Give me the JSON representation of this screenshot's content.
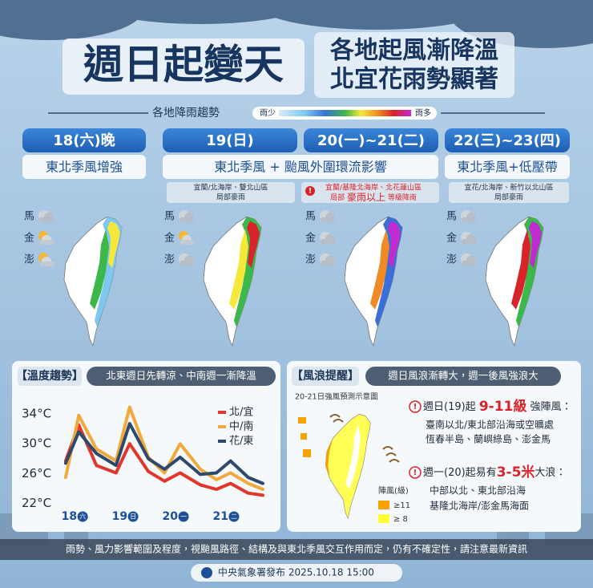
{
  "header": {
    "title": "週日起變天",
    "subtitle_lines": [
      "各地起風漸降溫",
      "北宜花雨勢顯著"
    ]
  },
  "rain_legend": {
    "title": "各地降雨趨勢",
    "low": "雨少",
    "high": "雨多"
  },
  "periods": [
    "18(六)晚",
    "19(日)",
    "20(一)~21(二)",
    "22(三)~23(四)"
  ],
  "descriptions": [
    "東北季風增強",
    "東北季風 + 颱風外圍環流影響",
    "東北季風+低壓帶"
  ],
  "notes": {
    "n19": [
      "宜蘭/北海岸、雙北山區",
      "局部豪雨"
    ],
    "n20": {
      "line1": "宜蘭/基隆北海岸、北花蓮山區",
      "lead": "局部",
      "highlight": "豪雨以上",
      "tail": "等級降雨"
    },
    "n22": [
      "宜花/北海岸、新竹以北山區",
      "局部豪雨"
    ]
  },
  "islands": [
    "馬",
    "金",
    "澎"
  ],
  "temperature": {
    "title": "溫度趨勢",
    "subtitle": "北東週日先轉涼、中南週一漸降溫"
  },
  "chart_data": {
    "type": "line",
    "x": [
      17.71,
      17.97,
      18.32,
      18.71,
      18.98,
      19.35,
      19.67,
      19.98,
      20.38,
      20.7,
      20.98,
      21.33,
      21.62
    ],
    "xlim": [
      17.6,
      21.7
    ],
    "xticks": [
      {
        "value": 18,
        "label": "18"
      },
      {
        "value": 19,
        "label": "19"
      },
      {
        "value": 20,
        "label": "20"
      },
      {
        "value": 21,
        "label": "21"
      }
    ],
    "xtick_weekdays": [
      "六",
      "日",
      "一",
      "二"
    ],
    "ylim": [
      21,
      35.5
    ],
    "yticks": [
      {
        "value": 22,
        "label": "22°C"
      },
      {
        "value": 26,
        "label": "26°C"
      },
      {
        "value": 30,
        "label": "30°C"
      },
      {
        "value": 34,
        "label": "34°C"
      }
    ],
    "grid": false,
    "series": [
      {
        "name": "北/宜",
        "color": "#e0362b",
        "values": [
          27.7,
          32.5,
          27.1,
          26.1,
          30.0,
          26.3,
          25.0,
          26.1,
          24.5,
          23.9,
          24.7,
          23.4,
          23.1
        ]
      },
      {
        "name": "中/南",
        "color": "#f2a93b",
        "values": [
          25.5,
          33.8,
          29.3,
          27.7,
          34.9,
          28.2,
          26.1,
          30.0,
          26.6,
          25.2,
          26.1,
          24.7,
          23.9
        ]
      },
      {
        "name": "花/東",
        "color": "#2e4a6b",
        "values": [
          27.4,
          31.6,
          28.7,
          27.1,
          32.7,
          28.0,
          26.6,
          28.2,
          25.9,
          26.1,
          27.7,
          25.5,
          24.7
        ]
      }
    ]
  },
  "wind": {
    "title": "風浪提醒",
    "subtitle": "週日風浪漸轉大，週一後風強浪大",
    "map_title": "20-21日強風預測示意圖",
    "legend_title": "陣風(級)",
    "legend_items": [
      "≥11",
      "≥ 8"
    ],
    "items": [
      {
        "lead": "週日(19)起",
        "highlight": "9-11級",
        "tail": "強陣風：",
        "lines": [
          "臺南以北/東北部沿海或空曠處",
          "恆春半島、蘭嶼綠島、澎金馬"
        ]
      },
      {
        "lead": "週一(20)起易有",
        "highlight": "3-5米",
        "tail": "大浪：",
        "lines": [
          "中部以北、東北部沿海",
          "基隆北海岸/澎金馬海面"
        ]
      }
    ]
  },
  "footer": {
    "disclaimer": "雨勢、風力影響範圍及程度，視颱風路徑、結構及與東北季風交互作用而定，仍有不確定性，請注意最新資訊",
    "issuer": "中央氣象署發布  2025.10.18 15:00"
  }
}
